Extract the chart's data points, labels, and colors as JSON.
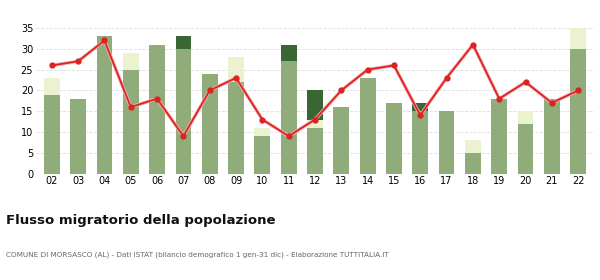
{
  "years": [
    "02",
    "03",
    "04",
    "05",
    "06",
    "07",
    "08",
    "09",
    "10",
    "11",
    "12",
    "13",
    "14",
    "15",
    "16",
    "17",
    "18",
    "19",
    "20",
    "21",
    "22"
  ],
  "iscritti_comuni": [
    19,
    18,
    33,
    25,
    31,
    30,
    24,
    22,
    9,
    27,
    11,
    16,
    23,
    17,
    15,
    15,
    5,
    18,
    12,
    18,
    30
  ],
  "iscritti_estero": [
    4,
    0,
    0,
    4,
    0,
    0,
    0,
    6,
    2,
    0,
    2,
    0,
    0,
    0,
    0,
    0,
    3,
    0,
    3,
    0,
    5
  ],
  "iscritti_altri": [
    0,
    0,
    0,
    0,
    0,
    3,
    0,
    0,
    0,
    4,
    7,
    0,
    0,
    0,
    2,
    0,
    0,
    0,
    0,
    0,
    0
  ],
  "cancellati": [
    26,
    27,
    32,
    16,
    18,
    9,
    20,
    23,
    13,
    9,
    13,
    20,
    25,
    26,
    14,
    23,
    31,
    18,
    22,
    17,
    20
  ],
  "color_comuni": "#8fac7a",
  "color_estero": "#eaf2d0",
  "color_altri": "#3a6635",
  "color_cancellati": "#dd2222",
  "ylim": [
    0,
    35
  ],
  "yticks": [
    0,
    5,
    10,
    15,
    20,
    25,
    30,
    35
  ],
  "title": "Flusso migratorio della popolazione",
  "subtitle": "COMUNE DI MORSASCO (AL) - Dati ISTAT (bilancio demografico 1 gen-31 dic) - Elaborazione TUTTITALIA.IT",
  "bg_color": "#ffffff",
  "grid_color": "#dddddd"
}
